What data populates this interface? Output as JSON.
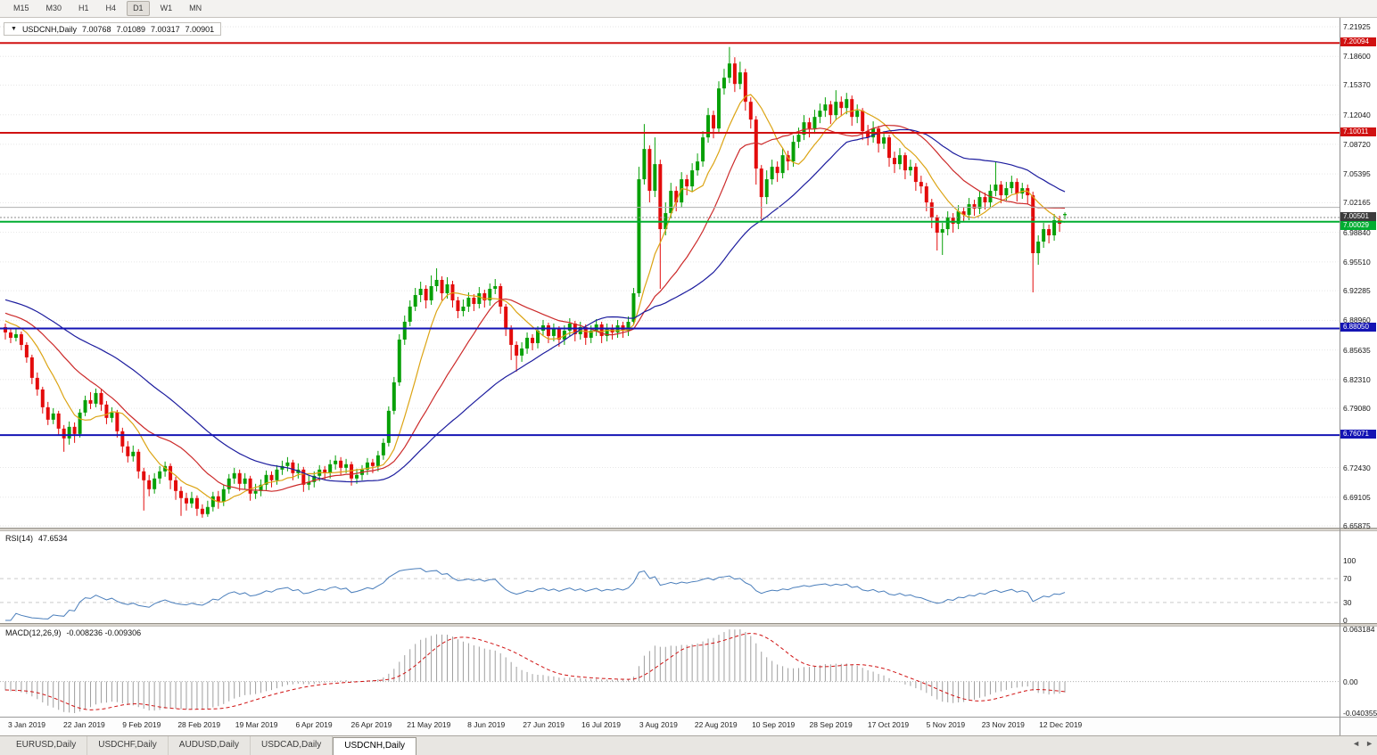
{
  "toolbar": {
    "periods": [
      "M15",
      "M30",
      "H1",
      "H4",
      "D1",
      "W1",
      "MN"
    ],
    "active": "D1"
  },
  "title_overlay": {
    "dropdown_icon": "▼",
    "symbol": "USDCNH,Daily",
    "open": "7.00768",
    "high": "7.01089",
    "low": "7.00317",
    "close": "7.00901"
  },
  "price_axis": {
    "ticks": [
      "7.21925",
      "7.18600",
      "7.15370",
      "7.12040",
      "7.08720",
      "7.05395",
      "7.02165",
      "6.98840",
      "6.95510",
      "6.92285",
      "6.88960",
      "6.85635",
      "6.82310",
      "6.79080",
      "6.72430",
      "6.69105",
      "6.65875"
    ]
  },
  "levels": [
    {
      "price": 7.20094,
      "label": "7.20094",
      "color": "#d01111",
      "width": 2
    },
    {
      "price": 7.10011,
      "label": "7.10011",
      "color": "#d01111",
      "width": 2
    },
    {
      "price": 7.0165,
      "label": "",
      "color": "#b0b0b0",
      "width": 1
    },
    {
      "price": 7.00029,
      "label": "7.00029",
      "color": "#00ad31",
      "width": 2
    },
    {
      "price": 6.8805,
      "label": "6.88050",
      "color": "#1414b4",
      "width": 2
    },
    {
      "price": 6.76071,
      "label": "6.76071",
      "color": "#1414b4",
      "width": 2
    }
  ],
  "bid": {
    "price": 7.00501,
    "label": "7.00501",
    "tag_bg": "#3c3c3c",
    "line_color": "#8c8c8c"
  },
  "style": {
    "up": "#07a007",
    "down": "#e30b0b",
    "grid": "#e6e6e6",
    "ma_fast": "#dca414",
    "ma_mid": "#cc2a2a",
    "ma_slow": "#1c1c9e",
    "rsi_line": "#4a7ebb",
    "rsi_level": "#c9c9c9",
    "macd_hist": "#9e9e9e",
    "macd_signal": "#d01111",
    "macd_zero": "#b0b0b0"
  },
  "rsi_pane": {
    "title": "RSI(14)",
    "value": "47.6534",
    "period": 14,
    "axis_labels": [
      "100",
      "70",
      "30",
      "0"
    ],
    "axis_values": [
      100,
      70,
      30,
      0
    ],
    "levels": [
      70,
      30
    ]
  },
  "macd_pane": {
    "title": "MACD(12,26,9)",
    "value": "-0.008236 -0.009306",
    "axis_labels": [
      "0.063184",
      "0.00",
      "-0.040355"
    ],
    "fast": 12,
    "slow": 26,
    "signal": 9
  },
  "tabs": {
    "items": [
      "EURUSD,Daily",
      "USDCHF,Daily",
      "AUDUSD,Daily",
      "USDCAD,Daily",
      "USDCNH,Daily"
    ],
    "active_index": 4,
    "nav_left": "◄",
    "nav_right": "►"
  },
  "chart_data": {
    "type": "candlestick",
    "symbol": "USDCNH",
    "timeframe": "Daily",
    "ylim": [
      6.65875,
      7.21925
    ],
    "x_labels": [
      "3 Jan 2019",
      "22 Jan 2019",
      "9 Feb 2019",
      "28 Feb 2019",
      "19 Mar 2019",
      "6 Apr 2019",
      "26 Apr 2019",
      "21 May 2019",
      "8 Jun 2019",
      "27 Jun 2019",
      "16 Jul 2019",
      "3 Aug 2019",
      "22 Aug 2019",
      "10 Sep 2019",
      "28 Sep 2019",
      "17 Oct 2019",
      "5 Nov 2019",
      "23 Nov 2019",
      "12 Dec 2019"
    ],
    "moving_average_windows": [
      9,
      20,
      40
    ],
    "indicators": [
      {
        "name": "RSI",
        "period": 14,
        "last": "47.6534"
      },
      {
        "name": "MACD",
        "params": "12,26,9",
        "last": "-0.008236 -0.009306"
      }
    ],
    "ohlc": [
      [
        6.882,
        6.886,
        6.868,
        6.876
      ],
      [
        6.876,
        6.881,
        6.864,
        6.87
      ],
      [
        6.87,
        6.88,
        6.866,
        6.874
      ],
      [
        6.874,
        6.877,
        6.856,
        6.862
      ],
      [
        6.862,
        6.865,
        6.842,
        6.848
      ],
      [
        6.848,
        6.851,
        6.818,
        6.825
      ],
      [
        6.825,
        6.831,
        6.805,
        6.812
      ],
      [
        6.812,
        6.815,
        6.785,
        6.792
      ],
      [
        6.792,
        6.798,
        6.772,
        6.778
      ],
      [
        6.778,
        6.791,
        6.773,
        6.785
      ],
      [
        6.785,
        6.788,
        6.76,
        6.768
      ],
      [
        6.768,
        6.772,
        6.742,
        6.757
      ],
      [
        6.757,
        6.776,
        6.75,
        6.77
      ],
      [
        6.77,
        6.775,
        6.752,
        6.762
      ],
      [
        6.762,
        6.79,
        6.758,
        6.786
      ],
      [
        6.786,
        6.805,
        6.782,
        6.8
      ],
      [
        6.8,
        6.809,
        6.79,
        6.796
      ],
      [
        6.796,
        6.813,
        6.792,
        6.808
      ],
      [
        6.808,
        6.812,
        6.788,
        6.795
      ],
      [
        6.795,
        6.799,
        6.773,
        6.78
      ],
      [
        6.78,
        6.792,
        6.775,
        6.786
      ],
      [
        6.786,
        6.789,
        6.758,
        6.765
      ],
      [
        6.765,
        6.769,
        6.741,
        6.748
      ],
      [
        6.748,
        6.754,
        6.73,
        6.737
      ],
      [
        6.737,
        6.749,
        6.731,
        6.742
      ],
      [
        6.742,
        6.745,
        6.712,
        6.72
      ],
      [
        6.72,
        6.724,
        6.676,
        6.71
      ],
      [
        6.71,
        6.716,
        6.692,
        6.7
      ],
      [
        6.7,
        6.718,
        6.695,
        6.712
      ],
      [
        6.712,
        6.726,
        6.706,
        6.72
      ],
      [
        6.72,
        6.731,
        6.714,
        6.726
      ],
      [
        6.726,
        6.729,
        6.7,
        6.71
      ],
      [
        6.71,
        6.714,
        6.688,
        6.698
      ],
      [
        6.698,
        6.703,
        6.67,
        6.69
      ],
      [
        6.69,
        6.696,
        6.676,
        6.684
      ],
      [
        6.684,
        6.697,
        6.679,
        6.69
      ],
      [
        6.69,
        6.693,
        6.67,
        6.678
      ],
      [
        6.678,
        6.683,
        6.668,
        6.672
      ],
      [
        6.672,
        6.687,
        6.669,
        6.68
      ],
      [
        6.68,
        6.697,
        6.675,
        6.692
      ],
      [
        6.692,
        6.698,
        6.678,
        6.686
      ],
      [
        6.686,
        6.705,
        6.681,
        6.7
      ],
      [
        6.7,
        6.717,
        6.695,
        6.712
      ],
      [
        6.712,
        6.724,
        6.706,
        6.718
      ],
      [
        6.718,
        6.722,
        6.698,
        6.706
      ],
      [
        6.706,
        6.718,
        6.7,
        6.712
      ],
      [
        6.712,
        6.715,
        6.687,
        6.695
      ],
      [
        6.695,
        6.706,
        6.689,
        6.698
      ],
      [
        6.698,
        6.711,
        6.692,
        6.705
      ],
      [
        6.705,
        6.721,
        6.699,
        6.716
      ],
      [
        6.716,
        6.72,
        6.702,
        6.71
      ],
      [
        6.71,
        6.727,
        6.705,
        6.722
      ],
      [
        6.722,
        6.732,
        6.716,
        6.726
      ],
      [
        6.726,
        6.736,
        6.72,
        6.73
      ],
      [
        6.73,
        6.733,
        6.71,
        6.718
      ],
      [
        6.718,
        6.729,
        6.712,
        6.722
      ],
      [
        6.722,
        6.725,
        6.697,
        6.705
      ],
      [
        6.705,
        6.716,
        6.699,
        6.708
      ],
      [
        6.708,
        6.72,
        6.702,
        6.715
      ],
      [
        6.715,
        6.727,
        6.709,
        6.722
      ],
      [
        6.722,
        6.726,
        6.71,
        6.718
      ],
      [
        6.718,
        6.733,
        6.712,
        6.728
      ],
      [
        6.728,
        6.738,
        6.722,
        6.732
      ],
      [
        6.732,
        6.736,
        6.716,
        6.724
      ],
      [
        6.724,
        6.734,
        6.718,
        6.728
      ],
      [
        6.728,
        6.731,
        6.704,
        6.712
      ],
      [
        6.712,
        6.723,
        6.706,
        6.716
      ],
      [
        6.716,
        6.727,
        6.71,
        6.722
      ],
      [
        6.722,
        6.735,
        6.716,
        6.73
      ],
      [
        6.73,
        6.734,
        6.718,
        6.726
      ],
      [
        6.726,
        6.743,
        6.72,
        6.738
      ],
      [
        6.738,
        6.757,
        6.733,
        6.752
      ],
      [
        6.752,
        6.793,
        6.748,
        6.788
      ],
      [
        6.788,
        6.826,
        6.784,
        6.82
      ],
      [
        6.82,
        6.874,
        6.816,
        6.868
      ],
      [
        6.868,
        6.895,
        6.862,
        6.888
      ],
      [
        6.888,
        6.912,
        6.883,
        6.905
      ],
      [
        6.905,
        6.926,
        6.9,
        6.918
      ],
      [
        6.918,
        6.933,
        6.91,
        6.925
      ],
      [
        6.925,
        6.929,
        6.903,
        6.912
      ],
      [
        6.912,
        6.94,
        6.907,
        6.928
      ],
      [
        6.928,
        6.948,
        6.922,
        6.935
      ],
      [
        6.935,
        6.939,
        6.912,
        6.92
      ],
      [
        6.92,
        6.938,
        6.914,
        6.93
      ],
      [
        6.93,
        6.934,
        6.904,
        6.912
      ],
      [
        6.912,
        6.916,
        6.892,
        6.9
      ],
      [
        6.9,
        6.913,
        6.894,
        6.905
      ],
      [
        6.905,
        6.921,
        6.899,
        6.915
      ],
      [
        6.915,
        6.919,
        6.9,
        6.908
      ],
      [
        6.908,
        6.927,
        6.903,
        6.92
      ],
      [
        6.92,
        6.924,
        6.904,
        6.912
      ],
      [
        6.912,
        6.931,
        6.906,
        6.925
      ],
      [
        6.925,
        6.936,
        6.919,
        6.928
      ],
      [
        6.928,
        6.931,
        6.897,
        6.905
      ],
      [
        6.905,
        6.908,
        6.872,
        6.88
      ],
      [
        6.88,
        6.884,
        6.845,
        6.862
      ],
      [
        6.862,
        6.866,
        6.832,
        6.85
      ],
      [
        6.85,
        6.865,
        6.843,
        6.858
      ],
      [
        6.858,
        6.876,
        6.852,
        6.87
      ],
      [
        6.87,
        6.874,
        6.856,
        6.864
      ],
      [
        6.864,
        6.883,
        6.858,
        6.878
      ],
      [
        6.878,
        6.89,
        6.872,
        6.884
      ],
      [
        6.884,
        6.887,
        6.864,
        6.872
      ],
      [
        6.872,
        6.886,
        6.866,
        6.88
      ],
      [
        6.88,
        6.883,
        6.86,
        6.868
      ],
      [
        6.868,
        6.884,
        6.862,
        6.878
      ],
      [
        6.878,
        6.892,
        6.872,
        6.886
      ],
      [
        6.886,
        6.889,
        6.866,
        6.874
      ],
      [
        6.874,
        6.888,
        6.868,
        6.882
      ],
      [
        6.882,
        6.885,
        6.862,
        6.87
      ],
      [
        6.87,
        6.884,
        6.864,
        6.878
      ],
      [
        6.878,
        6.891,
        6.872,
        6.885
      ],
      [
        6.885,
        6.888,
        6.864,
        6.872
      ],
      [
        6.872,
        6.886,
        6.866,
        6.88
      ],
      [
        6.88,
        6.885,
        6.868,
        6.876
      ],
      [
        6.876,
        6.89,
        6.87,
        6.884
      ],
      [
        6.884,
        6.888,
        6.87,
        6.878
      ],
      [
        6.878,
        6.894,
        6.872,
        6.888
      ],
      [
        6.888,
        6.926,
        6.884,
        6.92
      ],
      [
        6.92,
        7.062,
        6.916,
        7.048
      ],
      [
        7.048,
        7.11,
        7.042,
        7.082
      ],
      [
        7.082,
        7.086,
        7.022,
        7.035
      ],
      [
        7.035,
        7.095,
        7.028,
        7.065
      ],
      [
        7.065,
        7.07,
        6.925,
        6.992
      ],
      [
        6.992,
        7.022,
        6.985,
        7.01
      ],
      [
        7.01,
        7.044,
        7.004,
        7.035
      ],
      [
        7.035,
        7.04,
        7.012,
        7.022
      ],
      [
        7.022,
        7.056,
        7.016,
        7.048
      ],
      [
        7.048,
        7.053,
        7.03,
        7.04
      ],
      [
        7.04,
        7.066,
        7.034,
        7.058
      ],
      [
        7.058,
        7.077,
        7.052,
        7.068
      ],
      [
        7.068,
        7.102,
        7.062,
        7.095
      ],
      [
        7.095,
        7.128,
        7.089,
        7.12
      ],
      [
        7.12,
        7.125,
        7.094,
        7.105
      ],
      [
        7.105,
        7.158,
        7.1,
        7.15
      ],
      [
        7.15,
        7.172,
        7.143,
        7.162
      ],
      [
        7.162,
        7.1965,
        7.156,
        7.178
      ],
      [
        7.178,
        7.185,
        7.146,
        7.155
      ],
      [
        7.155,
        7.18,
        7.149,
        7.168
      ],
      [
        7.168,
        7.172,
        7.125,
        7.135
      ],
      [
        7.135,
        7.14,
        7.105,
        7.115
      ],
      [
        7.115,
        7.119,
        7.042,
        7.06
      ],
      [
        7.06,
        7.064,
        7.003,
        7.028
      ],
      [
        7.028,
        7.058,
        7.02,
        7.048
      ],
      [
        7.048,
        7.07,
        7.042,
        7.062
      ],
      [
        7.062,
        7.068,
        7.045,
        7.055
      ],
      [
        7.055,
        7.083,
        7.049,
        7.075
      ],
      [
        7.075,
        7.08,
        7.058,
        7.068
      ],
      [
        7.068,
        7.097,
        7.062,
        7.09
      ],
      [
        7.09,
        7.106,
        7.083,
        7.098
      ],
      [
        7.098,
        7.12,
        7.092,
        7.112
      ],
      [
        7.112,
        7.117,
        7.095,
        7.105
      ],
      [
        7.105,
        7.126,
        7.099,
        7.118
      ],
      [
        7.118,
        7.133,
        7.111,
        7.125
      ],
      [
        7.125,
        7.14,
        7.118,
        7.132
      ],
      [
        7.132,
        7.136,
        7.11,
        7.12
      ],
      [
        7.12,
        7.148,
        7.114,
        7.135
      ],
      [
        7.135,
        7.141,
        7.119,
        7.128
      ],
      [
        7.128,
        7.145,
        7.121,
        7.138
      ],
      [
        7.138,
        7.142,
        7.108,
        7.118
      ],
      [
        7.118,
        7.132,
        7.111,
        7.125
      ],
      [
        7.125,
        7.128,
        7.092,
        7.102
      ],
      [
        7.102,
        7.109,
        7.086,
        7.095
      ],
      [
        7.095,
        7.113,
        7.089,
        7.105
      ],
      [
        7.105,
        7.108,
        7.078,
        7.088
      ],
      [
        7.088,
        7.102,
        7.082,
        7.095
      ],
      [
        7.095,
        7.098,
        7.062,
        7.072
      ],
      [
        7.072,
        7.079,
        7.055,
        7.065
      ],
      [
        7.065,
        7.083,
        7.059,
        7.075
      ],
      [
        7.075,
        7.078,
        7.048,
        7.058
      ],
      [
        7.058,
        7.07,
        7.052,
        7.062
      ],
      [
        7.062,
        7.066,
        7.035,
        7.045
      ],
      [
        7.045,
        7.052,
        7.032,
        7.04
      ],
      [
        7.04,
        7.044,
        7.012,
        7.022
      ],
      [
        7.022,
        7.026,
        6.993,
        7.005
      ],
      [
        7.005,
        7.008,
        6.968,
        6.988
      ],
      [
        6.988,
        6.999,
        6.963,
        6.992
      ],
      [
        6.992,
        7.012,
        6.985,
        7.005
      ],
      [
        7.005,
        7.01,
        6.988,
        6.998
      ],
      [
        6.998,
        7.019,
        6.992,
        7.012
      ],
      [
        7.012,
        7.017,
        7.0,
        7.008
      ],
      [
        7.008,
        7.027,
        7.002,
        7.02
      ],
      [
        7.02,
        7.025,
        7.007,
        7.015
      ],
      [
        7.015,
        7.035,
        7.009,
        7.028
      ],
      [
        7.028,
        7.033,
        7.014,
        7.022
      ],
      [
        7.022,
        7.042,
        7.016,
        7.035
      ],
      [
        7.035,
        7.068,
        7.029,
        7.042
      ],
      [
        7.042,
        7.046,
        7.021,
        7.03
      ],
      [
        7.03,
        7.045,
        7.024,
        7.038
      ],
      [
        7.038,
        7.052,
        7.032,
        7.045
      ],
      [
        7.045,
        7.049,
        7.023,
        7.032
      ],
      [
        7.032,
        7.044,
        7.026,
        7.038
      ],
      [
        7.038,
        7.042,
        7.02,
        7.03
      ],
      [
        7.03,
        7.034,
        6.921,
        6.965
      ],
      [
        6.965,
        6.985,
        6.952,
        6.978
      ],
      [
        6.978,
        6.999,
        6.971,
        6.992
      ],
      [
        6.992,
        6.997,
        6.976,
        6.985
      ],
      [
        6.985,
        7.009,
        6.979,
        7.002
      ],
      [
        7.002,
        7.007,
        6.989,
        6.998
      ],
      [
        7.00768,
        7.01089,
        7.00317,
        7.00901
      ]
    ]
  }
}
